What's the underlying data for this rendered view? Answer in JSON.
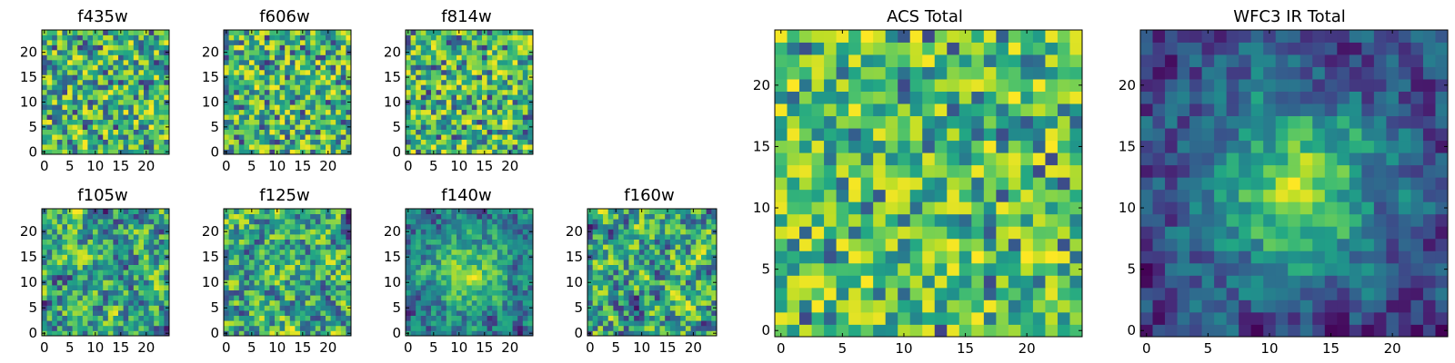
{
  "chart_data": [
    {
      "type": "heatmap",
      "title": "f435w",
      "colormap": "viridis",
      "grid_size": 25,
      "xticks": [
        0,
        5,
        10,
        15,
        20
      ],
      "yticks": [
        0,
        5,
        10,
        15,
        20
      ],
      "xlim": [
        0,
        25
      ],
      "ylim": [
        0,
        25
      ],
      "seed": 11,
      "pattern": "noise"
    },
    {
      "type": "heatmap",
      "title": "f606w",
      "colormap": "viridis",
      "grid_size": 25,
      "xticks": [
        0,
        5,
        10,
        15,
        20
      ],
      "yticks": [
        0,
        5,
        10,
        15,
        20
      ],
      "xlim": [
        0,
        25
      ],
      "ylim": [
        0,
        25
      ],
      "seed": 23,
      "pattern": "noise"
    },
    {
      "type": "heatmap",
      "title": "f814w",
      "colormap": "viridis",
      "grid_size": 25,
      "xticks": [
        0,
        5,
        10,
        15,
        20
      ],
      "yticks": [
        0,
        5,
        10,
        15,
        20
      ],
      "xlim": [
        0,
        25
      ],
      "ylim": [
        0,
        25
      ],
      "seed": 37,
      "pattern": "noise"
    },
    {
      "type": "heatmap",
      "title": "f105w",
      "colormap": "viridis",
      "grid_size": 25,
      "xticks": [
        0,
        5,
        10,
        15,
        20
      ],
      "yticks": [
        0,
        5,
        10,
        15,
        20
      ],
      "xlim": [
        0,
        25
      ],
      "ylim": [
        0,
        25
      ],
      "seed": 41,
      "pattern": "smooth"
    },
    {
      "type": "heatmap",
      "title": "f125w",
      "colormap": "viridis",
      "grid_size": 25,
      "xticks": [
        0,
        5,
        10,
        15,
        20
      ],
      "yticks": [
        0,
        5,
        10,
        15,
        20
      ],
      "xlim": [
        0,
        25
      ],
      "ylim": [
        0,
        25
      ],
      "seed": 53,
      "pattern": "smooth"
    },
    {
      "type": "heatmap",
      "title": "f140w",
      "colormap": "viridis",
      "grid_size": 25,
      "xticks": [
        0,
        5,
        10,
        15,
        20
      ],
      "yticks": [
        0,
        5,
        10,
        15,
        20
      ],
      "xlim": [
        0,
        25
      ],
      "ylim": [
        0,
        25
      ],
      "seed": 67,
      "pattern": "smooth_center"
    },
    {
      "type": "heatmap",
      "title": "f160w",
      "colormap": "viridis",
      "grid_size": 25,
      "xticks": [
        0,
        5,
        10,
        15,
        20
      ],
      "yticks": [
        0,
        5,
        10,
        15,
        20
      ],
      "xlim": [
        0,
        25
      ],
      "ylim": [
        0,
        25
      ],
      "seed": 79,
      "pattern": "smooth"
    },
    {
      "type": "heatmap",
      "title": "ACS Total",
      "colormap": "viridis",
      "grid_size": 25,
      "xticks": [
        0,
        5,
        10,
        15,
        20
      ],
      "yticks": [
        0,
        5,
        10,
        15,
        20
      ],
      "xlim": [
        0,
        25
      ],
      "ylim": [
        0,
        25
      ],
      "seed": 97,
      "pattern": "noise_bright"
    },
    {
      "type": "heatmap",
      "title": "WFC3 IR Total",
      "colormap": "viridis",
      "grid_size": 25,
      "xticks": [
        0,
        5,
        10,
        15,
        20
      ],
      "yticks": [
        0,
        5,
        10,
        15,
        20
      ],
      "xlim": [
        0,
        25
      ],
      "ylim": [
        0,
        25
      ],
      "seed": 101,
      "pattern": "smooth_center_strong"
    }
  ]
}
